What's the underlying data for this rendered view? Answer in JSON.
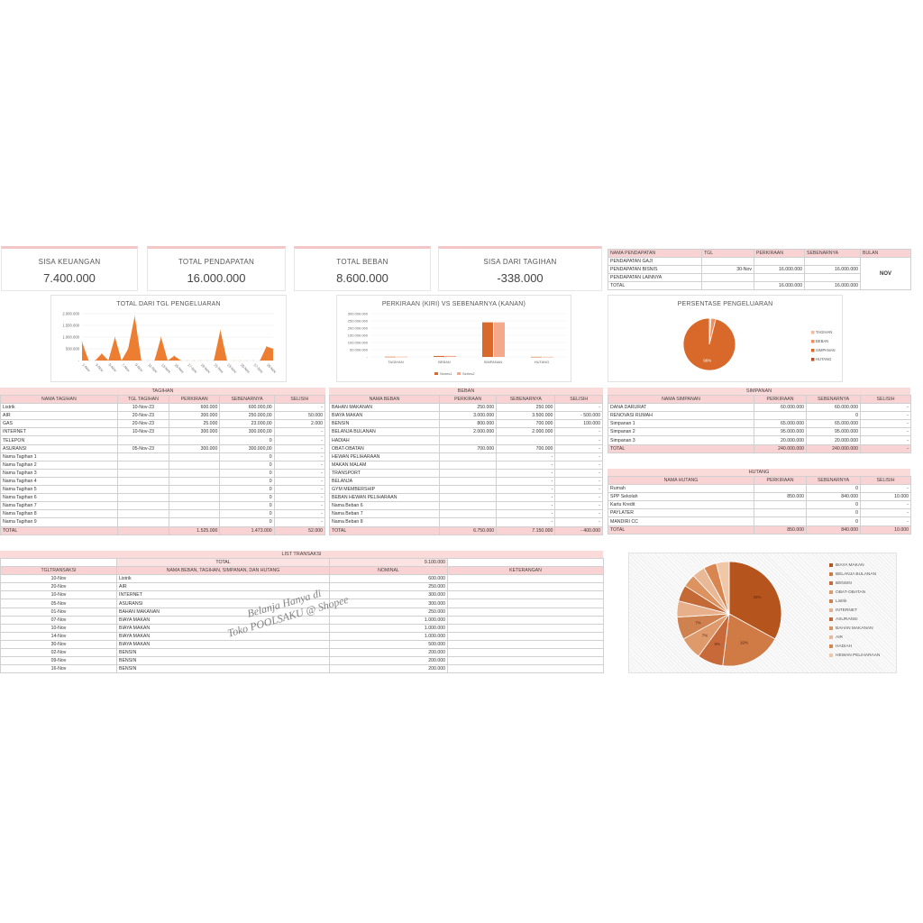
{
  "kpis": [
    {
      "label": "SISA KEUANGAN",
      "value": "7.400.000"
    },
    {
      "label": "TOTAL PENDAPATAN",
      "value": "16.000.000"
    },
    {
      "label": "TOTAL BEBAN",
      "value": "8.600.000"
    },
    {
      "label": "SISA DARI TAGIHAN",
      "value": "-338.000"
    }
  ],
  "income": {
    "headers": [
      "NAMA PENDAPATAN",
      "TGL",
      "PERKIRAAN",
      "SEBENARNYA",
      "BULAN"
    ],
    "rows": [
      [
        "PENDAPATAN GAJI",
        "",
        "",
        ""
      ],
      [
        "PENDAPATAN BISNIS",
        "30-Nov",
        "16.000.000",
        "16.000.000"
      ],
      [
        "PENDAPATAN LAINNYA",
        "",
        "",
        ""
      ],
      [
        "TOTAL",
        "",
        "16.000.000",
        "16.000.000"
      ]
    ],
    "month": "NOV"
  },
  "charts": {
    "line_title": "TOTAL DARI TGL PENGELUARAN",
    "bar_title": "PERKIRAAN (KIRI) VS SEBENARNYA (KANAN)",
    "pie_title": "PERSENTASE PENGELUARAN"
  },
  "chart_data": [
    {
      "type": "area",
      "title": "TOTAL DARI TGL PENGELUARAN",
      "categories": [
        "1-Nov",
        "3-Nov",
        "5-Nov",
        "7-Nov",
        "9-Nov",
        "11-Nov",
        "13-Nov",
        "15-Nov",
        "17-Nov",
        "19-Nov",
        "21-Nov",
        "23-Nov",
        "25-Nov",
        "27-Nov",
        "29-Nov"
      ],
      "x": [
        "1-Nov",
        "2-Nov",
        "3-Nov",
        "4-Nov",
        "5-Nov",
        "6-Nov",
        "7-Nov",
        "8-Nov",
        "9-Nov",
        "10-Nov",
        "11-Nov",
        "12-Nov",
        "13-Nov",
        "14-Nov",
        "15-Nov",
        "16-Nov",
        "17-Nov",
        "18-Nov",
        "19-Nov",
        "20-Nov",
        "21-Nov",
        "22-Nov",
        "23-Nov",
        "24-Nov",
        "25-Nov",
        "26-Nov",
        "27-Nov",
        "28-Nov",
        "29-Nov",
        "30-Nov"
      ],
      "values": [
        800000,
        0,
        0,
        300000,
        0,
        1000000,
        0,
        500000,
        1900000,
        0,
        0,
        0,
        1000000,
        0,
        200000,
        0,
        0,
        0,
        0,
        0,
        0,
        1300000,
        0,
        0,
        0,
        0,
        0,
        0,
        600000,
        500000
      ],
      "yticks": [
        "2.000.000",
        "1.500.000",
        "1.000.000",
        "500.000",
        "-"
      ],
      "ylim": [
        0,
        2000000
      ],
      "color": "#ed7d31"
    },
    {
      "type": "bar",
      "title": "PERKIRAAN (KIRI) VS SEBENARNYA (KANAN)",
      "categories": [
        "TAGIHAN",
        "BEBAN",
        "SIMPANAN",
        "HUTANG"
      ],
      "series": [
        {
          "name": "Series1",
          "values": [
            1525000,
            6750000,
            240000000,
            850000
          ],
          "color": "#d9692a"
        },
        {
          "name": "Series2",
          "values": [
            1473000,
            7150000,
            240000000,
            840000
          ],
          "color": "#f4a98a"
        }
      ],
      "yticks": [
        "300.000.000",
        "250.000.000",
        "200.000.000",
        "150.000.000",
        "100.000.000",
        "50.000.000",
        "-"
      ],
      "ylim": [
        0,
        300000000
      ]
    },
    {
      "type": "pie",
      "title": "PERSENTASE PENGELUARAN",
      "labels": [
        "TAGIHAN",
        "BEBAN",
        "SIMPANAN",
        "HUTANG"
      ],
      "values": [
        1,
        3,
        96,
        0
      ],
      "slice_labels": [
        "",
        "",
        "96%",
        ""
      ],
      "colors": [
        "#f2b79d",
        "#f08e5e",
        "#d9692a",
        "#b8502a"
      ]
    },
    {
      "type": "pie",
      "labels": [
        "BIAYA MAKAN",
        "BELANJA BULANAN",
        "BENSIN",
        "OBAT-OBATAN",
        "Listrik",
        "INTERNET",
        "ASURANSI",
        "BAHAN MAKANAN",
        "AIR",
        "HADIAH",
        "HEWAN PELIHARAAN"
      ],
      "values": [
        33,
        19,
        8,
        7,
        7,
        5,
        5,
        4,
        4,
        4,
        4
      ],
      "slice_labels": [
        "33%",
        "19%",
        "8%",
        "7%",
        "7%",
        "",
        "",
        "",
        "",
        "",
        ""
      ],
      "colors": [
        "#b5541c",
        "#d07a45",
        "#c8693a",
        "#de9a6b",
        "#cf8250",
        "#e7b08a",
        "#c46a37",
        "#dd9360",
        "#e9b997",
        "#d88550",
        "#f0c8a8"
      ]
    }
  ],
  "tagihan": {
    "title": "TAGIHAN",
    "headers": [
      "NAMA TAGIHAN",
      "TGL TAGIHAN",
      "PERKIRAAN",
      "SEBENARNYA",
      "SELISIH"
    ],
    "rows": [
      [
        "Listrik",
        "10-Nov-23",
        "600.000",
        "600.000,00",
        "-"
      ],
      [
        "AIR",
        "20-Nov-23",
        "300.000",
        "250.000,00",
        "50.000"
      ],
      [
        "GAS",
        "20-Nov-23",
        "25.000",
        "23.000,00",
        "2.000"
      ],
      [
        "INTERNET",
        "10-Nov-23",
        "300.000",
        "300.000,00",
        "-"
      ],
      [
        "TELEPON",
        "",
        "",
        "0",
        "-"
      ],
      [
        "ASURANSI",
        "05-Nov-23",
        "300.000",
        "300.000,00",
        "-"
      ],
      [
        "Nama Tagihan 1",
        "",
        "",
        "0",
        "-"
      ],
      [
        "Nama Tagihan 2",
        "",
        "",
        "0",
        "-"
      ],
      [
        "Nama Tagihan 3",
        "",
        "",
        "0",
        "-"
      ],
      [
        "Nama Tagihan 4",
        "",
        "",
        "0",
        "-"
      ],
      [
        "Nama Tagihan 5",
        "",
        "",
        "0",
        "-"
      ],
      [
        "Nama Tagihan 6",
        "",
        "",
        "0",
        "-"
      ],
      [
        "Nama Tagihan 7",
        "",
        "",
        "0",
        "-"
      ],
      [
        "Nama Tagihan 8",
        "",
        "",
        "0",
        "-"
      ],
      [
        "Nama Tagihan 9",
        "",
        "",
        "0",
        "-"
      ]
    ],
    "total": [
      "TOTAL",
      "",
      "1.525.000",
      "1.473.000",
      "52.000"
    ]
  },
  "beban": {
    "title": "BEBAN",
    "headers": [
      "NAMA BEBAN",
      "PERKIRAAN",
      "SEBENARNYA",
      "SELISIH"
    ],
    "rows": [
      [
        "BAHAN MAKANAN",
        "250.000",
        "250.000",
        "-"
      ],
      [
        "BIAYA MAKAN",
        "3.000.000",
        "3.500.000",
        "- 500.000"
      ],
      [
        "BENSIN",
        "800.000",
        "700.000",
        "100.000"
      ],
      [
        "BELANJA BULANAN",
        "2.000.000",
        "2.000.000",
        "-"
      ],
      [
        "HADIAH",
        "",
        "",
        "-"
      ],
      [
        "OBAT-OBATAN",
        "700.000",
        "700.000",
        "-"
      ],
      [
        "HEWAN PELIHARAAN",
        "",
        "-",
        "-"
      ],
      [
        "MAKAN MALAM",
        "",
        "-",
        "-"
      ],
      [
        "TRANSPORT",
        "",
        "-",
        "-"
      ],
      [
        "BELANJA",
        "",
        "-",
        "-"
      ],
      [
        "GYM MEMBERSHIP",
        "",
        "-",
        "-"
      ],
      [
        "BEBAN HEWAN PELIHARAAN",
        "",
        "-",
        "-"
      ],
      [
        "Nama Beban 6",
        "",
        "-",
        "-"
      ],
      [
        "Nama Beban 7",
        "",
        "-",
        "-"
      ],
      [
        "Nama Beban 8",
        "",
        "-",
        "-"
      ]
    ],
    "total": [
      "TOTAL",
      "6.750.000",
      "7.150.000",
      "- 400.000"
    ]
  },
  "simpanan": {
    "title": "SIMPANAN",
    "headers": [
      "NAMA SIMPANAN",
      "PERKIRAAN",
      "SEBENARNYA",
      "SELISIH"
    ],
    "rows": [
      [
        "DANA DARURAT",
        "60.000.000",
        "60.000.000",
        "-"
      ],
      [
        "RENOVASI RUMAH",
        "",
        "0",
        "-"
      ],
      [
        "Simpanan 1",
        "65.000.000",
        "65.000.000",
        "-"
      ],
      [
        "Simpanan 2",
        "95.000.000",
        "95.000.000",
        "-"
      ],
      [
        "Simpanan 3",
        "20.000.000",
        "20.000.000",
        "-"
      ]
    ],
    "total": [
      "TOTAL",
      "240.000.000",
      "240.000.000",
      "-"
    ]
  },
  "hutang": {
    "title": "HUTANG",
    "headers": [
      "NAMA HUTANG",
      "PERKIRAAN",
      "SEBENARNYA",
      "SELISIH"
    ],
    "rows": [
      [
        "Rumah",
        "",
        "0",
        "-"
      ],
      [
        "SPP Sekolah",
        "850.000",
        "840.000",
        "10.000"
      ],
      [
        "Kartu Kredit",
        "",
        "0",
        "-"
      ],
      [
        "PAYLATER",
        "",
        "0",
        "-"
      ],
      [
        "MANDIRI CC",
        "",
        "0",
        "-"
      ]
    ],
    "total": [
      "TOTAL",
      "850.000",
      "840.000",
      "10.000"
    ]
  },
  "transactions": {
    "title": "LIST TRANSAKSI",
    "total_label": "TOTAL",
    "total_value": "9.100.000",
    "headers": [
      "TGLTRANSAKSI",
      "NAMA BEBAN, TAGIHAN, SIMPANAN, DAN HUTANG",
      "NOMINAL",
      "KETERANGAN"
    ],
    "rows": [
      [
        "10-Nov",
        "Listrik",
        "600.000",
        ""
      ],
      [
        "20-Nov",
        "AIR",
        "250.000",
        ""
      ],
      [
        "10-Nov",
        "INTERNET",
        "300.000",
        ""
      ],
      [
        "05-Nov",
        "ASURANSI",
        "300.000",
        ""
      ],
      [
        "01-Nov",
        "BAHAN MAKANAN",
        "250.000",
        ""
      ],
      [
        "07-Nov",
        "BIAYA MAKAN",
        "1.000.000",
        ""
      ],
      [
        "10-Nov",
        "BIAYA MAKAN",
        "1.000.000",
        ""
      ],
      [
        "14-Nov",
        "BIAYA MAKAN",
        "1.000.000",
        ""
      ],
      [
        "30-Nov",
        "BIAYA MAKAN",
        "500.000",
        ""
      ],
      [
        "02-Nov",
        "BENSIN",
        "200.000",
        ""
      ],
      [
        "09-Nov",
        "BENSIN",
        "200.000",
        ""
      ],
      [
        "16-Nov",
        "BENSIN",
        "200.000",
        ""
      ]
    ]
  },
  "watermark": [
    "Belanja Hanya di",
    "Toko POOLSAKU @ Shopee"
  ]
}
